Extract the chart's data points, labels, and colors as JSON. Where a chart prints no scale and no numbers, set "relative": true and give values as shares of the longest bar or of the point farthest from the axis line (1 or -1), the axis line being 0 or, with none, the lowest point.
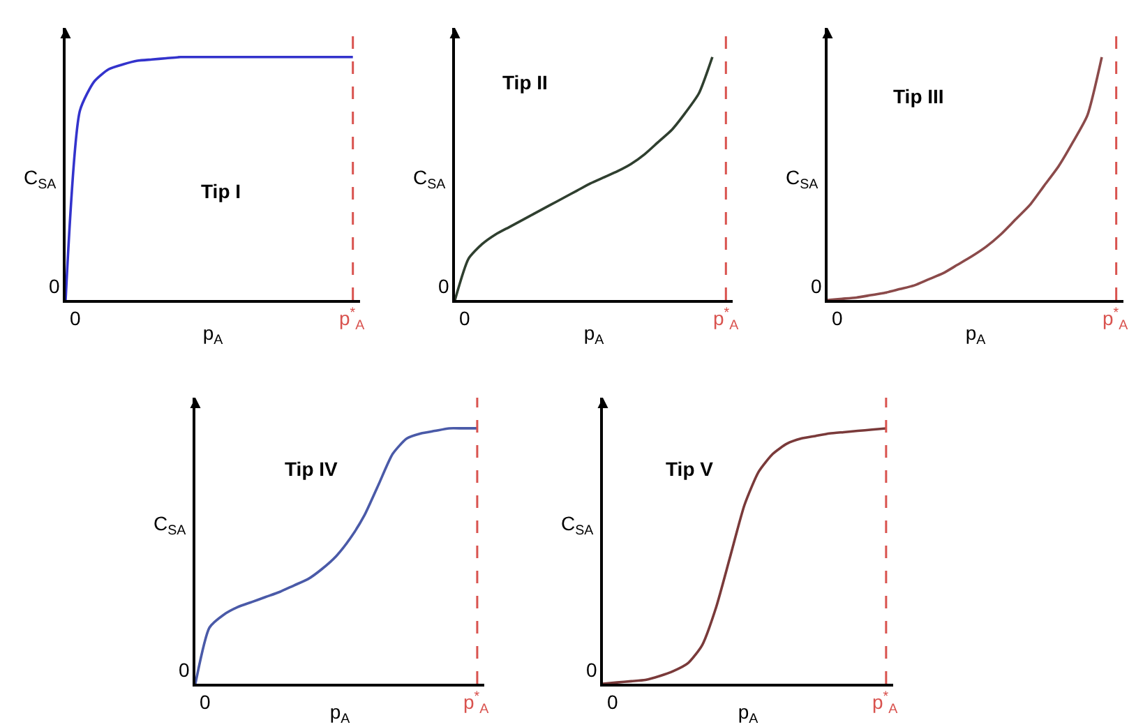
{
  "chart_data": [
    {
      "type": "line",
      "title": "Tip I",
      "xlabel": "p$_{A}$",
      "ylabel": "C$_{SA}$",
      "relative": true,
      "tick_labels": false,
      "annotations": [
        "0",
        "0"
      ],
      "categories": [
        null,
        null,
        null,
        null,
        null,
        null,
        null,
        null,
        null,
        null,
        null,
        null,
        null,
        null,
        null,
        null,
        null,
        null,
        null,
        null,
        null
      ],
      "ref_lines": [
        {
          "axis": "x",
          "label": "p$^{*}$$_{A}$",
          "color": "#d9534f",
          "line_style": "dashed"
        }
      ],
      "series": [
        {
          "color": "#3333cc",
          "values": [
            0,
            0.78,
            0.9,
            0.95,
            0.97,
            0.985,
            0.99,
            0.995,
            1,
            1,
            1,
            1,
            1,
            1,
            1,
            1,
            1,
            1,
            1,
            1,
            1
          ]
        }
      ]
    },
    {
      "type": "line",
      "title": "Tip II",
      "xlabel": "p$_{A}$",
      "ylabel": "C$_{SA}$",
      "relative": true,
      "tick_labels": false,
      "annotations": [
        "0",
        "0"
      ],
      "categories": [
        null,
        null,
        null,
        null,
        null,
        null,
        null,
        null,
        null,
        null,
        null,
        null,
        null,
        null,
        null,
        null,
        null,
        null,
        null,
        null,
        null
      ],
      "ref_lines": [
        {
          "axis": "x",
          "label": "p$^{*}$$_{A}$",
          "color": "#d9534f",
          "line_style": "dashed"
        }
      ],
      "series": [
        {
          "color": "#2f3f2f",
          "values": [
            0,
            0.17,
            0.23,
            0.27,
            0.3,
            0.33,
            0.36,
            0.39,
            0.42,
            0.45,
            0.48,
            0.505,
            0.53,
            0.56,
            0.6,
            0.65,
            0.7,
            0.77,
            0.85,
            1,
            null
          ]
        }
      ]
    },
    {
      "type": "line",
      "title": "Tip III",
      "xlabel": "p$_{A}$",
      "ylabel": "C$_{SA}$",
      "relative": true,
      "tick_labels": false,
      "annotations": [
        "0",
        "0"
      ],
      "categories": [
        null,
        null,
        null,
        null,
        null,
        null,
        null,
        null,
        null,
        null,
        null,
        null,
        null,
        null,
        null,
        null,
        null,
        null,
        null,
        null,
        null
      ],
      "ref_lines": [
        {
          "axis": "x",
          "label": "p$^{*}$$_{A}$",
          "color": "#d9534f",
          "line_style": "dashed"
        }
      ],
      "series": [
        {
          "color": "#8b4a4a",
          "values": [
            0,
            0.005,
            0.01,
            0.02,
            0.03,
            0.045,
            0.06,
            0.085,
            0.11,
            0.145,
            0.18,
            0.22,
            0.27,
            0.33,
            0.39,
            0.47,
            0.55,
            0.65,
            0.76,
            1,
            null
          ]
        }
      ]
    },
    {
      "type": "line",
      "title": "Tip IV",
      "xlabel": "p$_{A}$",
      "ylabel": "C$_{SA}$",
      "relative": true,
      "tick_labels": false,
      "annotations": [
        "0",
        "0"
      ],
      "categories": [
        null,
        null,
        null,
        null,
        null,
        null,
        null,
        null,
        null,
        null,
        null,
        null,
        null,
        null,
        null,
        null,
        null,
        null,
        null,
        null,
        null
      ],
      "ref_lines": [
        {
          "axis": "x",
          "label": "p$^{*}$$_{A}$",
          "color": "#d9534f",
          "line_style": "dashed"
        }
      ],
      "series": [
        {
          "color": "#4a5aa8",
          "values": [
            0,
            0.22,
            0.27,
            0.3,
            0.32,
            0.34,
            0.36,
            0.385,
            0.41,
            0.45,
            0.5,
            0.57,
            0.66,
            0.78,
            0.9,
            0.96,
            0.98,
            0.99,
            1,
            1,
            1
          ]
        }
      ]
    },
    {
      "type": "line",
      "title": "Tip V",
      "xlabel": "p$_{A}$",
      "ylabel": "C$_{SA}$",
      "relative": true,
      "tick_labels": false,
      "annotations": [
        "0",
        "0"
      ],
      "categories": [
        null,
        null,
        null,
        null,
        null,
        null,
        null,
        null,
        null,
        null,
        null,
        null,
        null,
        null,
        null,
        null,
        null,
        null,
        null,
        null,
        null
      ],
      "ref_lines": [
        {
          "axis": "x",
          "label": "p$^{*}$$_{A}$",
          "color": "#d9534f",
          "line_style": "dashed"
        }
      ],
      "series": [
        {
          "color": "#7a3a3a",
          "values": [
            0,
            0.005,
            0.01,
            0.015,
            0.03,
            0.05,
            0.08,
            0.15,
            0.3,
            0.5,
            0.7,
            0.83,
            0.9,
            0.94,
            0.96,
            0.97,
            0.98,
            0.985,
            0.99,
            0.995,
            1
          ]
        }
      ]
    }
  ]
}
